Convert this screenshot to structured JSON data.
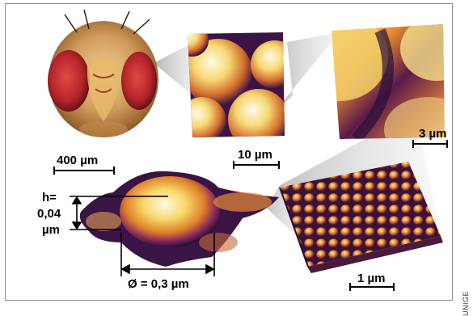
{
  "figure": {
    "scales": {
      "fly_head": "400 µm",
      "eye_facets": "10 µm",
      "facet_surface": "3 µm",
      "nipple_array": "1 µm"
    },
    "nipple": {
      "height_label_line1": "h=",
      "height_label_line2": "0,04",
      "height_label_line3": "µm",
      "diameter_label": "Ø = 0,3 µm"
    },
    "credit": "UNIGE"
  },
  "colors": {
    "frame": "#8a8a8a",
    "afm_dark": "#2a0f3a",
    "afm_purple": "#6b1f5e",
    "afm_orange": "#e07a2a",
    "afm_yellow": "#f5d36a",
    "afm_light": "#fff6cf",
    "fly_red": "#b4242a"
  }
}
